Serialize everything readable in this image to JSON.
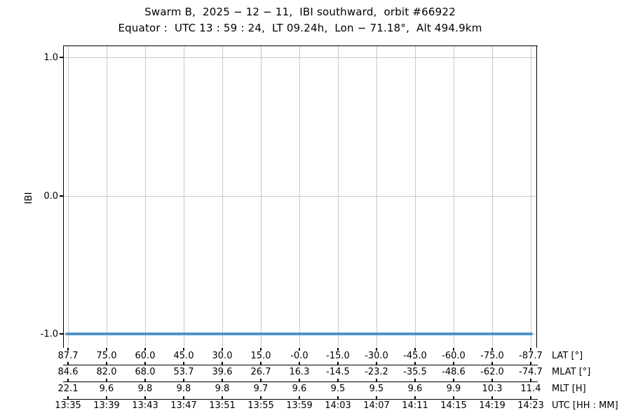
{
  "figure": {
    "title_line1": "Swarm B,  2025 − 12 − 11,  IBI southward,  orbit #66922",
    "title_line2": "Equator :  UTC 13 : 59 : 24,  LT 09.24h,  Lon − 71.18°,  Alt 494.9km"
  },
  "chart_data": {
    "type": "line",
    "title": "Swarm B, 2025-12-11, IBI southward, orbit #66922",
    "subtitle": "Equator: UTC 13:59:24, LT 09.24h, Lon -71.18°, Alt 494.9km",
    "ylabel": "IBI",
    "ylim": [
      -1.1,
      1.1
    ],
    "ytick_labels": [
      "1.0",
      "0.0",
      "-1.0"
    ],
    "grid": true,
    "legend": "none",
    "series": [
      {
        "name": "IBI",
        "color": "#4f94c9",
        "linewidth": 4,
        "description": "constant value across the whole pass",
        "x": [
          "13:35",
          "14:23"
        ],
        "y": [
          -1.0,
          -1.0
        ]
      }
    ],
    "x_axes": [
      {
        "label": "LAT [°]",
        "ticks": [
          "87.7",
          "75.0",
          "60.0",
          "45.0",
          "30.0",
          "15.0",
          "-0.0",
          "-15.0",
          "-30.0",
          "-45.0",
          "-60.0",
          "-75.0",
          "-87.7"
        ]
      },
      {
        "label": "MLAT [°]",
        "ticks": [
          "84.6",
          "82.0",
          "68.0",
          "53.7",
          "39.6",
          "26.7",
          "16.3",
          "-14.5",
          "-23.2",
          "-35.5",
          "-48.6",
          "-62.0",
          "-74.7"
        ]
      },
      {
        "label": "MLT [H]",
        "ticks": [
          "22.1",
          "9.6",
          "9.8",
          "9.8",
          "9.8",
          "9.7",
          "9.6",
          "9.5",
          "9.5",
          "9.6",
          "9.9",
          "10.3",
          "11.4"
        ]
      },
      {
        "label": "UTC [HH : MM]",
        "ticks": [
          "13:35",
          "13:39",
          "13:43",
          "13:47",
          "13:51",
          "13:55",
          "13:59",
          "14:03",
          "14:07",
          "14:11",
          "14:15",
          "14:19",
          "14:23"
        ]
      }
    ],
    "colors": {
      "line": "#4f94c9",
      "grid": "#c9c9c9",
      "spine": "#000000",
      "background": "#ffffff",
      "text": "#000000"
    }
  }
}
